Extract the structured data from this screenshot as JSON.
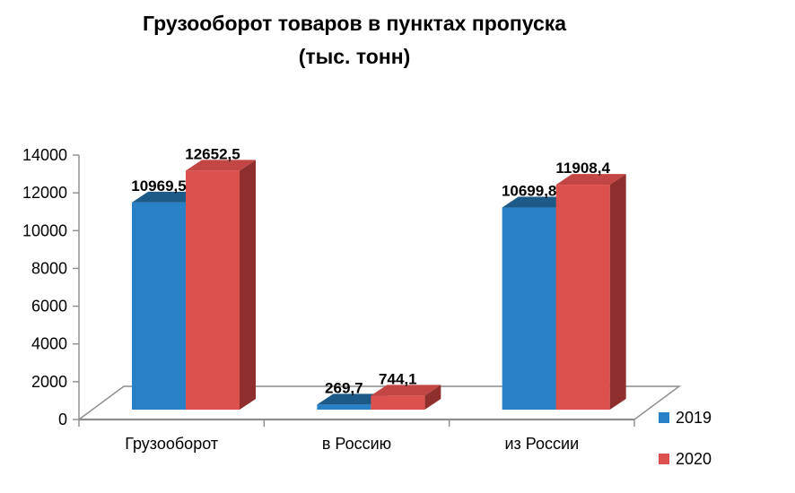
{
  "title": {
    "line1": "Грузооборот товаров в пунктах пропуска",
    "line2": "(тыс. тонн)"
  },
  "chart_data": {
    "type": "bar",
    "style": "3d-clustered-column",
    "title": "Грузооборот товаров в пунктах пропуска (тыс. тонн)",
    "categories": [
      "Грузооборот",
      "в Россию",
      "из России"
    ],
    "series": [
      {
        "name": "2019",
        "values": [
          10969.5,
          269.7,
          10699.8
        ],
        "data_labels": [
          "10969,5",
          "269,7",
          "10699,8"
        ],
        "color_front": "#2980C4",
        "color_top": "#1E5A87",
        "color_side": "#174A70"
      },
      {
        "name": "2020",
        "values": [
          12652.5,
          744.1,
          11908.4
        ],
        "data_labels": [
          "12652,5",
          "744,1",
          "11908,4"
        ],
        "color_front": "#DC504D",
        "color_top": "#C24643",
        "color_side": "#8F2F2D"
      }
    ],
    "xlabel": "",
    "ylabel": "",
    "ylim": [
      0,
      14000
    ],
    "ytick_step": 2000,
    "ytick_labels": [
      "0",
      "2000",
      "4000",
      "6000",
      "8000",
      "10000",
      "12000",
      "14000"
    ],
    "grid": false,
    "legend_position": "bottom-right",
    "axis_color": "#8C8C8C",
    "text_color": "#000000"
  }
}
